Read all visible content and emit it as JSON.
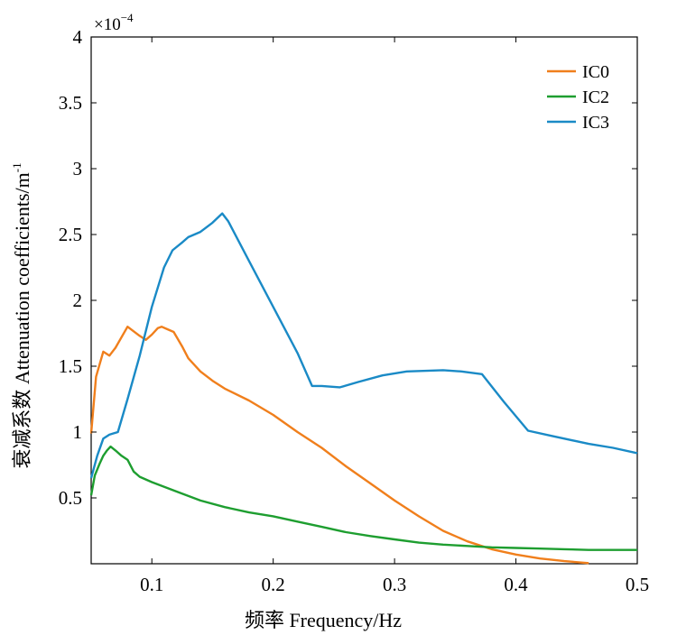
{
  "chart_data": {
    "type": "line",
    "title": "",
    "xlabel": "频率 Frequency/Hz",
    "ylabel": "衰减系数 Attenuation coefficients/m",
    "ylabel_sup": "-1",
    "exponent_label": "×10",
    "exponent_sup": "−4",
    "xlim": [
      0.05,
      0.5
    ],
    "ylim": [
      0,
      4
    ],
    "x_ticks": [
      0.1,
      0.2,
      0.3,
      0.4,
      0.5
    ],
    "x_tick_labels": [
      "0.1",
      "0.2",
      "0.3",
      "0.4",
      "0.5"
    ],
    "y_ticks": [
      0.5,
      1,
      1.5,
      2,
      2.5,
      3,
      3.5,
      4
    ],
    "y_tick_labels": [
      "0.5",
      "1",
      "1.5",
      "2",
      "2.5",
      "3",
      "3.5",
      "4"
    ],
    "legend_position": "top-right",
    "grid": false,
    "series": [
      {
        "name": "IC0",
        "color": "#f07f1c",
        "points": [
          [
            0.05,
            0.99
          ],
          [
            0.054,
            1.42
          ],
          [
            0.06,
            1.61
          ],
          [
            0.065,
            1.58
          ],
          [
            0.07,
            1.64
          ],
          [
            0.08,
            1.8
          ],
          [
            0.09,
            1.73
          ],
          [
            0.095,
            1.7
          ],
          [
            0.1,
            1.74
          ],
          [
            0.105,
            1.79
          ],
          [
            0.108,
            1.8
          ],
          [
            0.113,
            1.78
          ],
          [
            0.118,
            1.76
          ],
          [
            0.125,
            1.65
          ],
          [
            0.13,
            1.56
          ],
          [
            0.14,
            1.46
          ],
          [
            0.15,
            1.39
          ],
          [
            0.16,
            1.33
          ],
          [
            0.18,
            1.24
          ],
          [
            0.2,
            1.13
          ],
          [
            0.22,
            1.0
          ],
          [
            0.24,
            0.88
          ],
          [
            0.26,
            0.74
          ],
          [
            0.28,
            0.61
          ],
          [
            0.3,
            0.48
          ],
          [
            0.32,
            0.36
          ],
          [
            0.34,
            0.25
          ],
          [
            0.36,
            0.17
          ],
          [
            0.38,
            0.11
          ],
          [
            0.4,
            0.07
          ],
          [
            0.42,
            0.04
          ],
          [
            0.44,
            0.02
          ],
          [
            0.46,
            0.005
          ]
        ]
      },
      {
        "name": "IC2",
        "color": "#1e9e30",
        "points": [
          [
            0.05,
            0.52
          ],
          [
            0.053,
            0.67
          ],
          [
            0.057,
            0.76
          ],
          [
            0.06,
            0.82
          ],
          [
            0.063,
            0.86
          ],
          [
            0.066,
            0.89
          ],
          [
            0.07,
            0.86
          ],
          [
            0.075,
            0.82
          ],
          [
            0.08,
            0.79
          ],
          [
            0.085,
            0.7
          ],
          [
            0.09,
            0.66
          ],
          [
            0.1,
            0.62
          ],
          [
            0.12,
            0.55
          ],
          [
            0.14,
            0.48
          ],
          [
            0.16,
            0.43
          ],
          [
            0.18,
            0.39
          ],
          [
            0.2,
            0.36
          ],
          [
            0.22,
            0.32
          ],
          [
            0.24,
            0.28
          ],
          [
            0.26,
            0.24
          ],
          [
            0.28,
            0.21
          ],
          [
            0.3,
            0.185
          ],
          [
            0.32,
            0.16
          ],
          [
            0.34,
            0.145
          ],
          [
            0.36,
            0.135
          ],
          [
            0.38,
            0.125
          ],
          [
            0.4,
            0.12
          ],
          [
            0.42,
            0.115
          ],
          [
            0.44,
            0.11
          ],
          [
            0.46,
            0.105
          ],
          [
            0.5,
            0.105
          ]
        ]
      },
      {
        "name": "IC3",
        "color": "#1a8ac6",
        "points": [
          [
            0.05,
            0.65
          ],
          [
            0.055,
            0.82
          ],
          [
            0.06,
            0.95
          ],
          [
            0.065,
            0.98
          ],
          [
            0.072,
            1.0
          ],
          [
            0.08,
            1.25
          ],
          [
            0.09,
            1.58
          ],
          [
            0.1,
            1.95
          ],
          [
            0.11,
            2.25
          ],
          [
            0.117,
            2.38
          ],
          [
            0.125,
            2.44
          ],
          [
            0.13,
            2.48
          ],
          [
            0.14,
            2.52
          ],
          [
            0.15,
            2.59
          ],
          [
            0.158,
            2.66
          ],
          [
            0.163,
            2.6
          ],
          [
            0.18,
            2.3
          ],
          [
            0.2,
            1.95
          ],
          [
            0.22,
            1.6
          ],
          [
            0.232,
            1.35
          ],
          [
            0.24,
            1.35
          ],
          [
            0.255,
            1.34
          ],
          [
            0.27,
            1.38
          ],
          [
            0.29,
            1.43
          ],
          [
            0.31,
            1.46
          ],
          [
            0.34,
            1.47
          ],
          [
            0.355,
            1.46
          ],
          [
            0.372,
            1.44
          ],
          [
            0.39,
            1.23
          ],
          [
            0.41,
            1.01
          ],
          [
            0.43,
            0.97
          ],
          [
            0.46,
            0.91
          ],
          [
            0.48,
            0.88
          ],
          [
            0.5,
            0.84
          ]
        ]
      }
    ]
  }
}
